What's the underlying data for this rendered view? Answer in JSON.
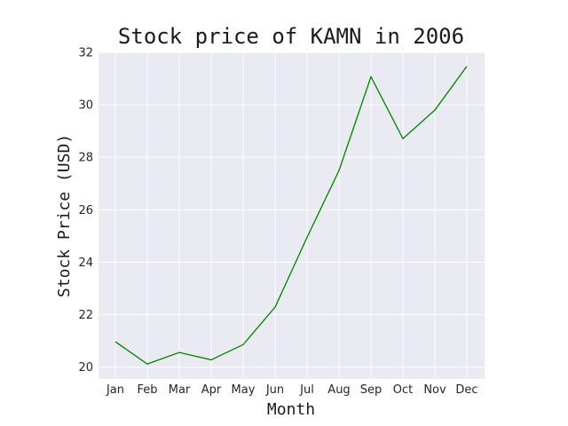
{
  "chart_data": {
    "type": "line",
    "title": "Stock price of KAMN in 2006",
    "xlabel": "Month",
    "ylabel": "Stock Price (USD)",
    "categories": [
      "Jan",
      "Feb",
      "Mar",
      "Apr",
      "May",
      "Jun",
      "Jul",
      "Aug",
      "Sep",
      "Oct",
      "Nov",
      "Dec"
    ],
    "series": [
      {
        "values": [
          20.97,
          20.12,
          20.56,
          20.28,
          20.86,
          22.29,
          24.95,
          27.5,
          31.07,
          28.71,
          29.8,
          31.47
        ]
      }
    ],
    "ylim": [
      19.55,
      32.0
    ],
    "yticks": [
      20,
      22,
      24,
      26,
      28,
      30,
      32
    ],
    "grid": true,
    "line_color": "#008000",
    "background_color": "#eaeaf2",
    "grid_color": "#ffffff"
  }
}
